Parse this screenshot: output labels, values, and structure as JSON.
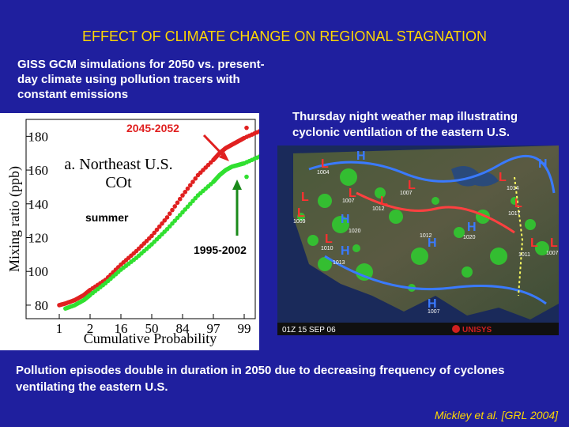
{
  "slide": {
    "title": "EFFECT OF CLIMATE CHANGE ON REGIONAL STAGNATION",
    "subtitle": "GISS GCM simulations for 2050 vs. present-day climate using pollution tracers with constant emissions",
    "map_caption": "Thursday night weather map illustrating cyclonic ventilation of the eastern U.S.",
    "conclusion": "Pollution episodes double in duration in 2050 due to decreasing frequency of cyclones ventilating the eastern U.S.",
    "citation": "Mickley et al. [GRL 2004]"
  },
  "labels": {
    "future_period": "2045-2052",
    "present_period": "1995-2002",
    "season": "summer"
  },
  "colors": {
    "background": "#1f1f9e",
    "title": "#ffd700",
    "future_series": "#e02020",
    "present_series": "#30e030"
  },
  "chart_data": {
    "type": "scatter",
    "title": "a. Northeast U.S. COt",
    "xlabel": "Cumulative Probability",
    "ylabel": "Mixing ratio (ppb)",
    "x_ticks": [
      "1",
      "2",
      "16",
      "50",
      "84",
      "97",
      "99"
    ],
    "y_ticks": [
      80,
      100,
      120,
      140,
      160,
      180
    ],
    "ylim": [
      72,
      190
    ],
    "series": [
      {
        "name": "2045-2052",
        "x_positions": [
          0,
          0.2,
          0.5,
          0.8,
          1,
          1.5,
          2,
          2.5,
          3,
          3.5,
          4,
          4.5,
          5,
          5.2,
          5.4,
          5.6,
          5.8,
          6,
          6.5
        ],
        "values": [
          80,
          81,
          83,
          86,
          89,
          95,
          104,
          112,
          121,
          132,
          145,
          157,
          166,
          170,
          173,
          175,
          177,
          179,
          183
        ]
      },
      {
        "name": "1995-2002",
        "x_positions": [
          0.2,
          0.5,
          0.8,
          1,
          1.5,
          2,
          2.5,
          3,
          3.5,
          4,
          4.5,
          5,
          5.2,
          5.4,
          5.6,
          5.8,
          6,
          6.5
        ],
        "values": [
          78,
          80,
          83,
          86,
          93,
          101,
          108,
          116,
          125,
          135,
          145,
          153,
          157,
          160,
          162,
          163,
          164,
          168
        ]
      }
    ]
  },
  "weather_map": {
    "timestamp": "01Z 15 SEP 06",
    "brand": "UNISYS",
    "highs": [
      "H",
      "H",
      "H",
      "H",
      "H",
      "H",
      "H"
    ],
    "lows": [
      "L",
      "L",
      "L",
      "L",
      "L",
      "L",
      "L",
      "L",
      "L",
      "L",
      "L"
    ],
    "pressure_values": [
      "1004",
      "1007",
      "1012",
      "1017",
      "1014",
      "1009",
      "1010",
      "1011",
      "1007",
      "1012",
      "1020",
      "1013",
      "1020",
      "1007",
      "1007"
    ]
  }
}
